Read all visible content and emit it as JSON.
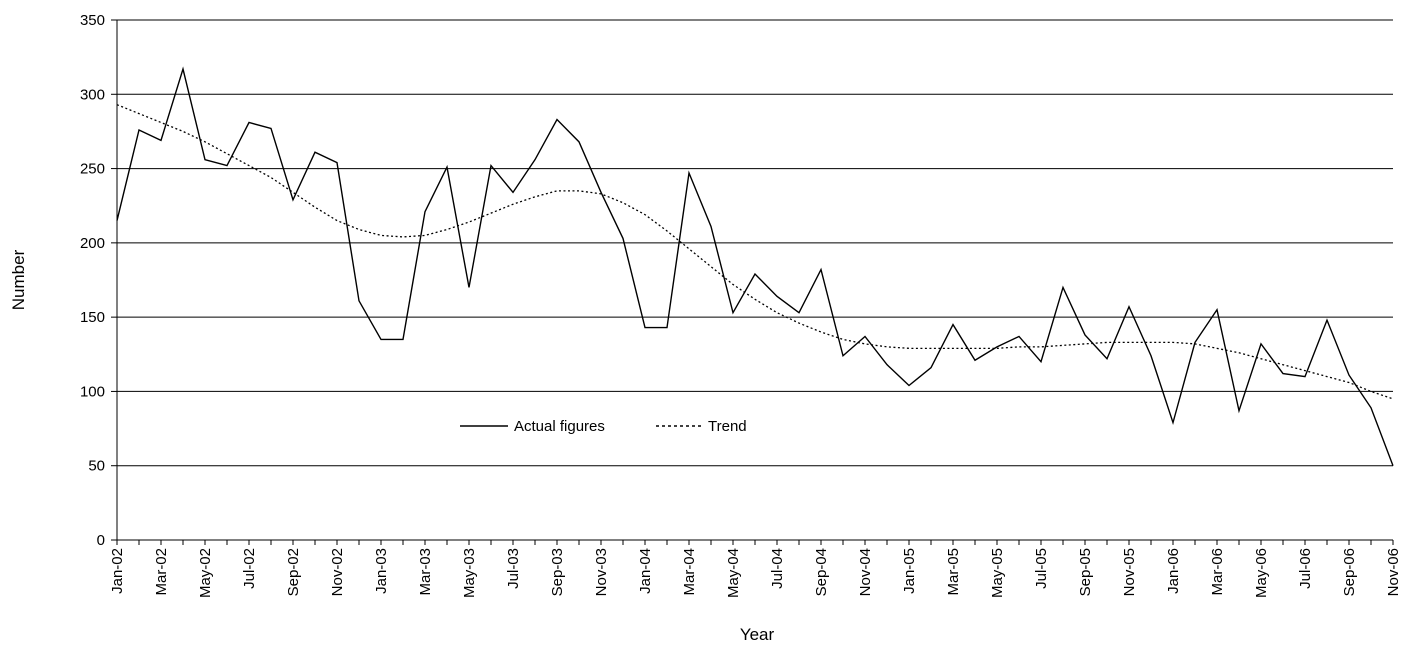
{
  "chart_data": {
    "type": "line",
    "title": "",
    "xlabel": "Year",
    "ylabel": "Number",
    "ylim": [
      0,
      350
    ],
    "yticks": [
      0,
      50,
      100,
      150,
      200,
      250,
      300,
      350
    ],
    "grid": true,
    "legend_position": "center-left",
    "x": [
      "Jan-02",
      "Feb-02",
      "Mar-02",
      "Apr-02",
      "May-02",
      "Jun-02",
      "Jul-02",
      "Aug-02",
      "Sep-02",
      "Oct-02",
      "Nov-02",
      "Dec-02",
      "Jan-03",
      "Feb-03",
      "Mar-03",
      "Apr-03",
      "May-03",
      "Jun-03",
      "Jul-03",
      "Aug-03",
      "Sep-03",
      "Oct-03",
      "Nov-03",
      "Dec-03",
      "Jan-04",
      "Feb-04",
      "Mar-04",
      "Apr-04",
      "May-04",
      "Jun-04",
      "Jul-04",
      "Aug-04",
      "Sep-04",
      "Oct-04",
      "Nov-04",
      "Dec-04",
      "Jan-05",
      "Feb-05",
      "Mar-05",
      "Apr-05",
      "May-05",
      "Jun-05",
      "Jul-05",
      "Aug-05",
      "Sep-05",
      "Oct-05",
      "Nov-05",
      "Dec-05",
      "Jan-06",
      "Feb-06",
      "Mar-06",
      "Apr-06",
      "May-06",
      "Jun-06",
      "Jul-06",
      "Aug-06",
      "Sep-06",
      "Oct-06",
      "Nov-06"
    ],
    "x_tick_labels": [
      "Jan-02",
      "Mar-02",
      "May-02",
      "Jul-02",
      "Sep-02",
      "Nov-02",
      "Jan-03",
      "Mar-03",
      "May-03",
      "Jul-03",
      "Sep-03",
      "Nov-03",
      "Jan-04",
      "Mar-04",
      "May-04",
      "Jul-04",
      "Sep-04",
      "Nov-04",
      "Jan-05",
      "Mar-05",
      "May-05",
      "Jul-05",
      "Sep-05",
      "Nov-05",
      "Jan-06",
      "Mar-06",
      "May-06",
      "Jul-06",
      "Sep-06",
      "Nov-06"
    ],
    "series": [
      {
        "name": "Actual figures",
        "style": "solid",
        "color": "#000000",
        "values": [
          215,
          276,
          269,
          317,
          256,
          252,
          281,
          277,
          229,
          261,
          254,
          161,
          135,
          135,
          221,
          251,
          170,
          252,
          234,
          256,
          283,
          268,
          234,
          203,
          143,
          143,
          247,
          211,
          153,
          179,
          164,
          153,
          182,
          124,
          137,
          118,
          104,
          116,
          145,
          121,
          130,
          137,
          120,
          170,
          138,
          122,
          157,
          124,
          79,
          133,
          155,
          87,
          132,
          112,
          110,
          148,
          111,
          89,
          50
        ]
      },
      {
        "name": "Trend",
        "style": "dotted",
        "color": "#000000",
        "values": [
          293,
          287,
          281,
          275,
          268,
          260,
          252,
          244,
          234,
          224,
          215,
          209,
          205,
          204,
          205,
          209,
          214,
          220,
          226,
          231,
          235,
          235,
          233,
          227,
          219,
          208,
          196,
          184,
          172,
          162,
          153,
          146,
          140,
          135,
          132,
          130,
          129,
          129,
          129,
          129,
          129,
          130,
          130,
          131,
          132,
          133,
          133,
          133,
          133,
          132,
          129,
          126,
          122,
          118,
          114,
          110,
          106,
          100,
          95
        ]
      }
    ]
  }
}
